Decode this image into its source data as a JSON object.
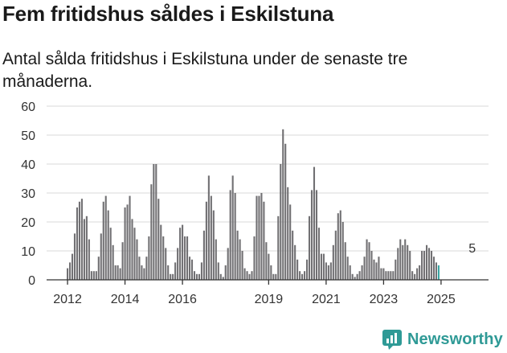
{
  "header": {
    "title": "Fem fritidshus såldes i Eskilstuna",
    "subtitle": "Antal sålda fritidshus i Eskilstuna under de senaste tre månaderna."
  },
  "brand": {
    "name": "Newsworthy",
    "logo_icon": "newsworthy-chart-icon",
    "color": "#2f9a96"
  },
  "colors": {
    "bar": "#717073",
    "highlight": "#3aa6a3",
    "grid": "#d9d9d9",
    "axis": "#333333",
    "text": "#333333"
  },
  "chart_data": {
    "type": "bar",
    "title": "Fem fritidshus såldes i Eskilstuna",
    "subtitle": "Antal sålda fritidshus i Eskilstuna under de senaste tre månaderna.",
    "xlabel": "",
    "ylabel": "",
    "ylim": [
      0,
      60
    ],
    "yticks": [
      0,
      10,
      20,
      30,
      40,
      50,
      60
    ],
    "grid": true,
    "start": "2012-01",
    "frequency": "monthly (rolling 3-month sum)",
    "xticks": [
      {
        "label": "2012",
        "index": 0
      },
      {
        "label": "2014",
        "index": 24
      },
      {
        "label": "2016",
        "index": 48
      },
      {
        "label": "2019",
        "index": 84
      },
      {
        "label": "2021",
        "index": 108
      },
      {
        "label": "2023",
        "index": 132
      },
      {
        "label": "2025",
        "index": 156
      }
    ],
    "annotation": {
      "text": "5",
      "index": 167
    },
    "values": [
      4,
      6,
      9,
      16,
      25,
      27,
      28,
      21,
      22,
      14,
      3,
      3,
      3,
      8,
      16,
      27,
      29,
      24,
      18,
      12,
      5,
      5,
      4,
      13,
      25,
      26,
      29,
      21,
      18,
      14,
      8,
      5,
      4,
      8,
      15,
      33,
      40,
      40,
      28,
      19,
      15,
      11,
      5,
      2,
      2,
      6,
      11,
      18,
      19,
      15,
      15,
      8,
      7,
      3,
      2,
      2,
      6,
      17,
      27,
      36,
      29,
      24,
      14,
      6,
      2,
      1,
      5,
      11,
      31,
      36,
      30,
      17,
      14,
      10,
      4,
      3,
      2,
      3,
      15,
      29,
      29,
      30,
      27,
      13,
      9,
      5,
      2,
      2,
      22,
      40,
      52,
      47,
      32,
      26,
      17,
      12,
      7,
      3,
      2,
      3,
      7,
      22,
      31,
      39,
      31,
      18,
      9,
      9,
      6,
      5,
      6,
      12,
      17,
      23,
      24,
      20,
      13,
      8,
      5,
      2,
      1,
      2,
      3,
      5,
      8,
      14,
      13,
      10,
      7,
      6,
      8,
      4,
      4,
      3,
      3,
      3,
      3,
      7,
      11,
      14,
      12,
      14,
      12,
      10,
      3,
      2,
      4,
      5,
      10,
      10,
      12,
      11,
      10,
      8,
      6,
      5
    ]
  }
}
